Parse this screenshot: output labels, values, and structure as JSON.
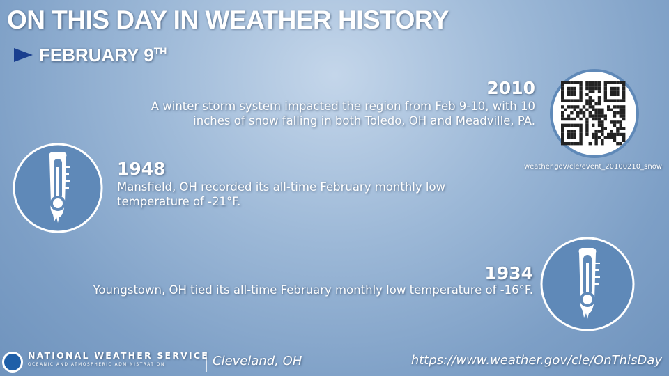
{
  "header": {
    "title": "ON THIS DAY IN WEATHER HISTORY",
    "date": "FEBRUARY 9",
    "date_suffix": "TH"
  },
  "events": [
    {
      "year": "2010",
      "text": "A winter storm system impacted the region from Feb 9-10, with 10 inches of snow falling in both Toledo, OH and Meadville, PA."
    },
    {
      "year": "1948",
      "text": "Mansfield, OH recorded its all-time February monthly low temperature of -21°F."
    },
    {
      "year": "1934",
      "text": "Youngstown, OH tied its all-time February monthly low temperature of -16°F."
    }
  ],
  "qr_caption": "weather.gov/cle/event_20100210_snow",
  "footer": {
    "agency": "NATIONAL WEATHER SERVICE",
    "agency_sub": "OCEANIC AND ATMOSPHERIC ADMINISTRATION",
    "office": "Cleveland, OH",
    "url": "https://www.weather.gov/cle/OnThisDay"
  }
}
